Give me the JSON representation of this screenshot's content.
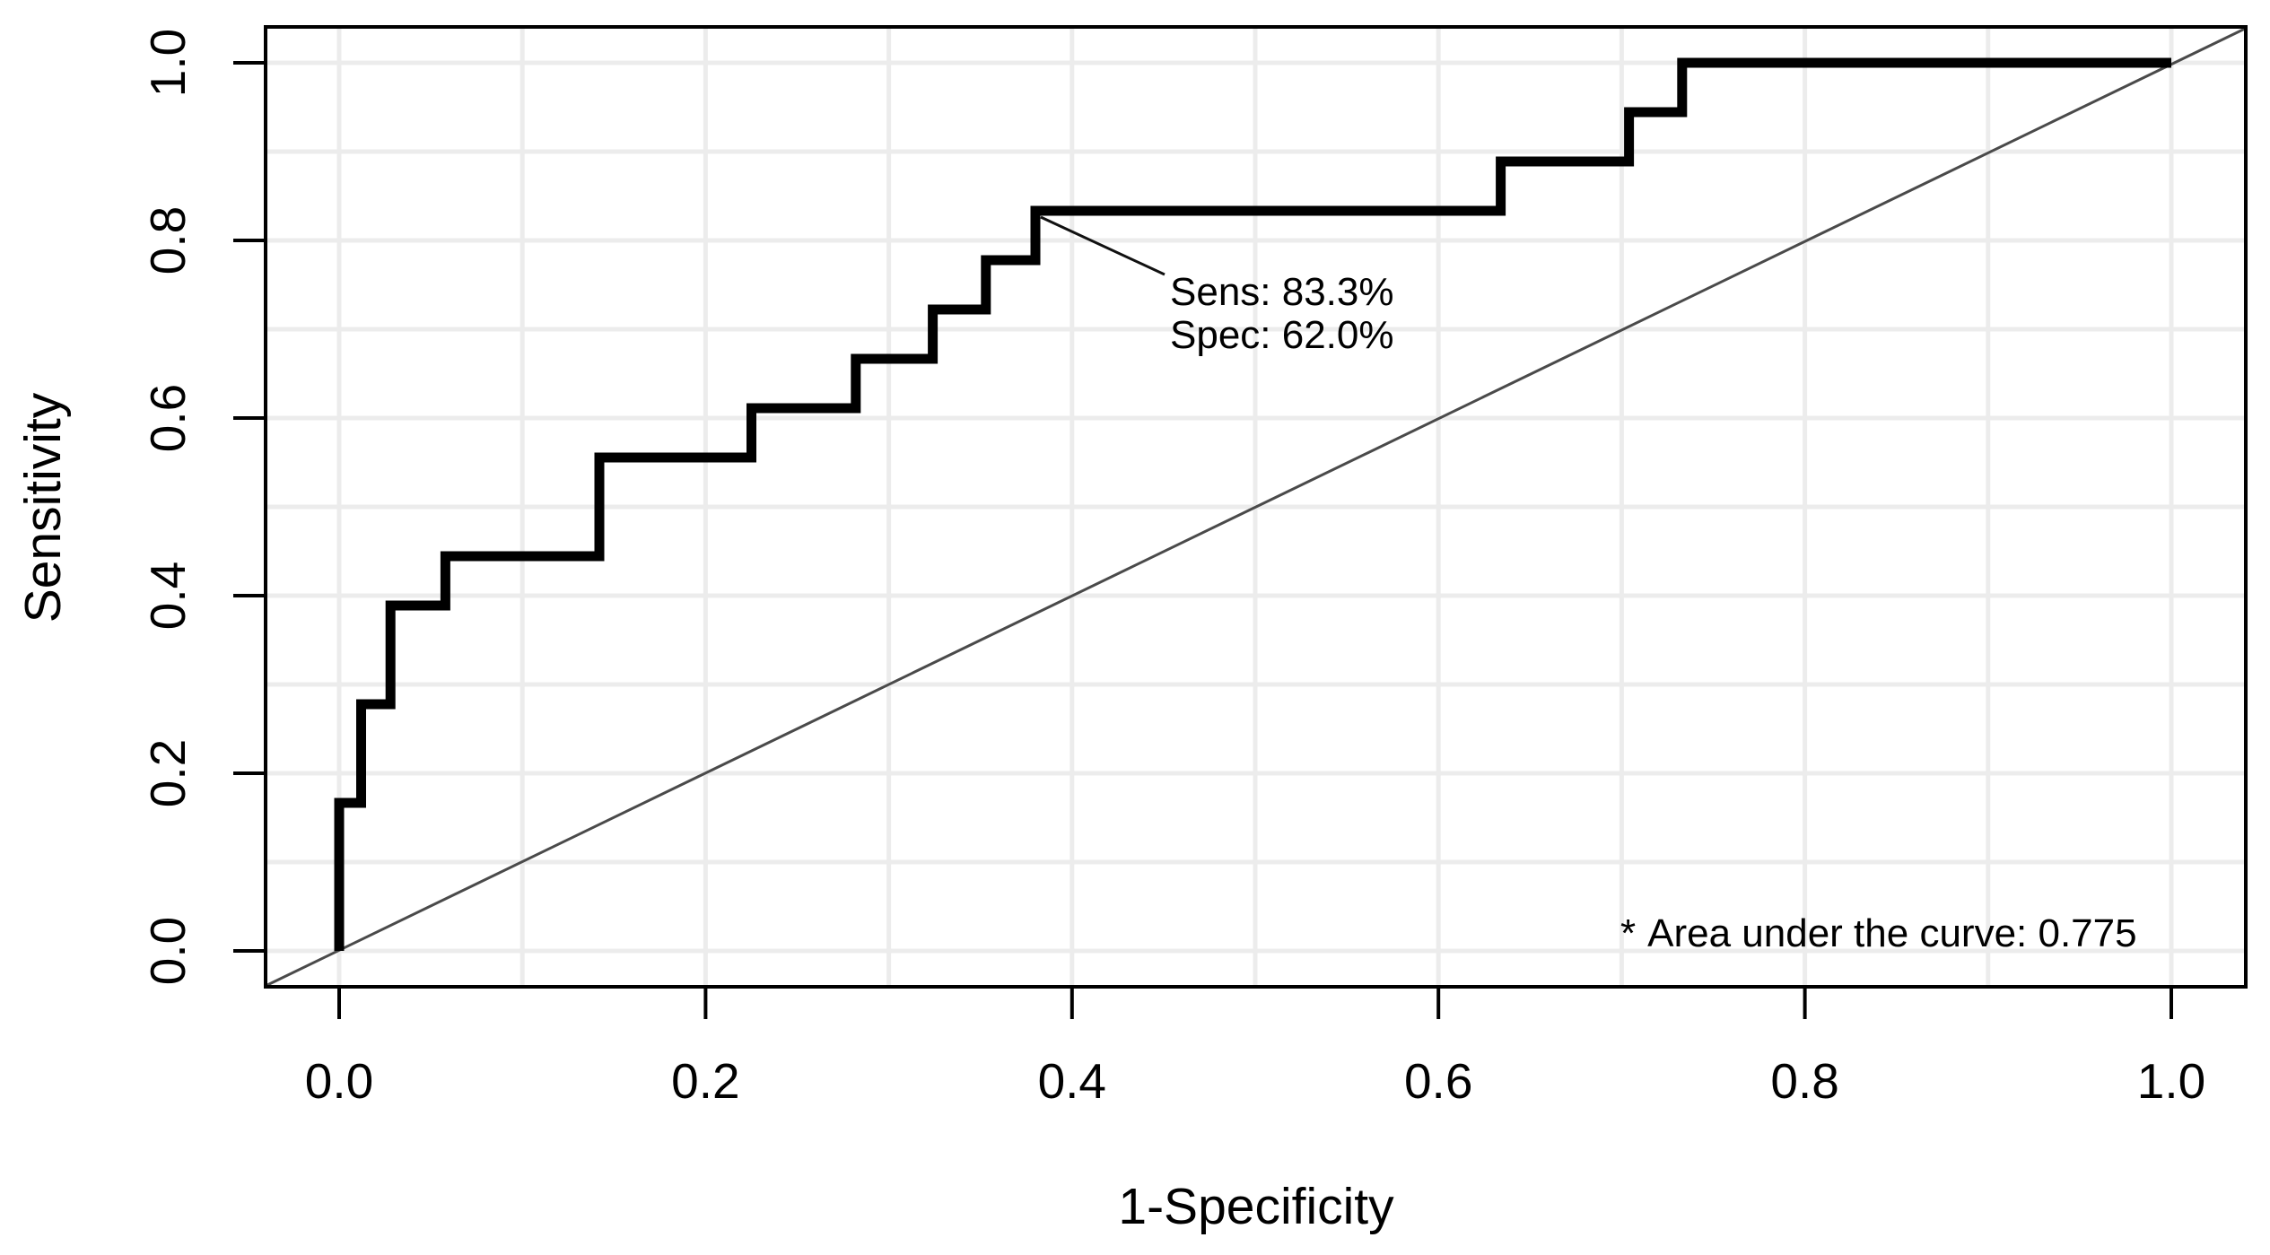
{
  "colors": {
    "curve": "#000000",
    "diagonal": "#4a4a4a",
    "grid": "#ececec",
    "box": "#000000",
    "text": "#000000",
    "background": "#ffffff"
  },
  "chart_data": {
    "type": "line",
    "subtype": "ROC step curve with chance diagonal",
    "title": "",
    "xlabel": "1-Specificity",
    "ylabel": "Sensitivity",
    "xlim": [
      0,
      1
    ],
    "ylim": [
      0,
      1
    ],
    "grid": {
      "visible": true,
      "step": 0.1
    },
    "x_ticks": {
      "values": [
        0.0,
        0.2,
        0.4,
        0.6,
        0.8,
        1.0
      ],
      "labels": [
        "0.0",
        "0.2",
        "0.4",
        "0.6",
        "0.8",
        "1.0"
      ]
    },
    "y_ticks": {
      "values": [
        0.0,
        0.2,
        0.4,
        0.6,
        0.8,
        1.0
      ],
      "labels": [
        "0.0",
        "0.2",
        "0.4",
        "0.6",
        "0.8",
        "1.0"
      ]
    },
    "series": [
      {
        "name": "ROC curve",
        "type": "step",
        "color": "#000000",
        "points": [
          [
            0.0,
            0.0
          ],
          [
            0.0,
            0.1667
          ],
          [
            0.012,
            0.1667
          ],
          [
            0.012,
            0.2778
          ],
          [
            0.028,
            0.2778
          ],
          [
            0.028,
            0.3889
          ],
          [
            0.058,
            0.3889
          ],
          [
            0.058,
            0.4444
          ],
          [
            0.142,
            0.4444
          ],
          [
            0.142,
            0.5556
          ],
          [
            0.225,
            0.5556
          ],
          [
            0.225,
            0.6111
          ],
          [
            0.282,
            0.6111
          ],
          [
            0.282,
            0.6667
          ],
          [
            0.324,
            0.6667
          ],
          [
            0.324,
            0.7222
          ],
          [
            0.353,
            0.7222
          ],
          [
            0.353,
            0.7778
          ],
          [
            0.38,
            0.7778
          ],
          [
            0.38,
            0.8333
          ],
          [
            0.634,
            0.8333
          ],
          [
            0.634,
            0.8889
          ],
          [
            0.704,
            0.8889
          ],
          [
            0.704,
            0.9444
          ],
          [
            0.733,
            0.9444
          ],
          [
            0.733,
            1.0
          ],
          [
            1.0,
            1.0
          ]
        ]
      },
      {
        "name": "chance diagonal",
        "type": "line",
        "color": "#4a4a4a",
        "points": [
          [
            0,
            0
          ],
          [
            1,
            1
          ]
        ]
      }
    ],
    "annotation": {
      "point": {
        "x": 0.38,
        "y": 0.8333
      },
      "lines": [
        "Sens: 83.3%",
        "Spec: 62.0%"
      ]
    },
    "auc_note": {
      "marker": "*",
      "label": "Area under the curve: 0.775"
    }
  }
}
